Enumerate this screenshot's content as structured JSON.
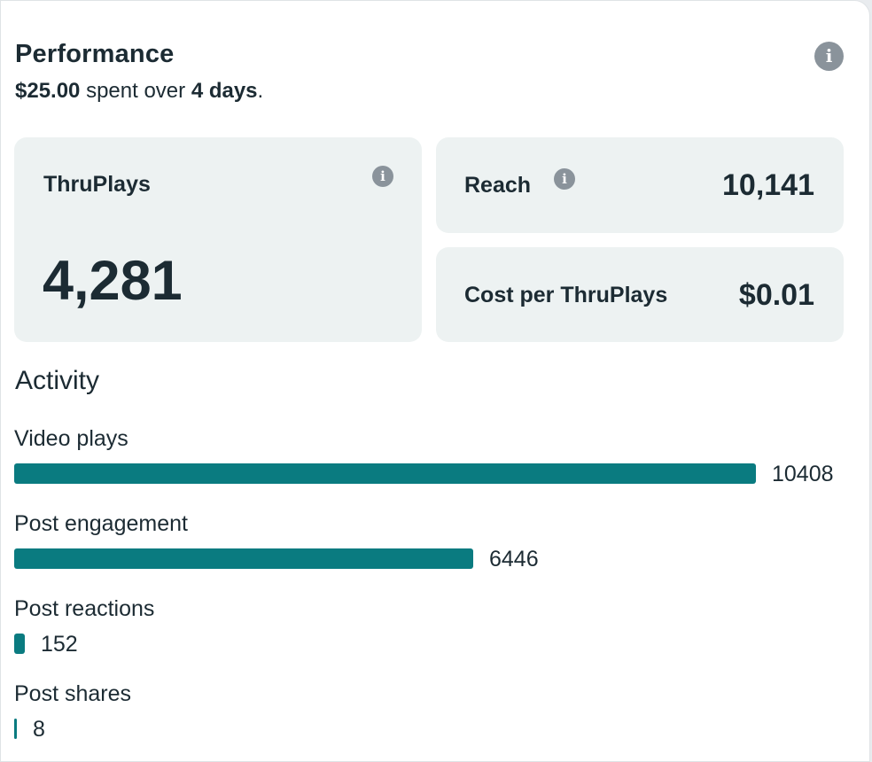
{
  "header": {
    "title": "Performance",
    "spent_amount": "$25.00",
    "spent_text": " spent over ",
    "days_text": "4 days",
    "period": "."
  },
  "tiles": {
    "thruplays": {
      "label": "ThruPlays",
      "value": "4,281"
    },
    "reach": {
      "label": "Reach",
      "value": "10,141"
    },
    "cost": {
      "label": "Cost per ThruPlays",
      "value": "$0.01"
    }
  },
  "icons": {
    "info": "info-icon",
    "info_glyph": "i"
  },
  "activity": {
    "title": "Activity",
    "bar_color": "#0a7b80",
    "max_value": 10408,
    "items": [
      {
        "label": "Video plays",
        "value": 10408
      },
      {
        "label": "Post engagement",
        "value": 6446
      },
      {
        "label": "Post reactions",
        "value": 152
      },
      {
        "label": "Post shares",
        "value": 8
      }
    ]
  }
}
